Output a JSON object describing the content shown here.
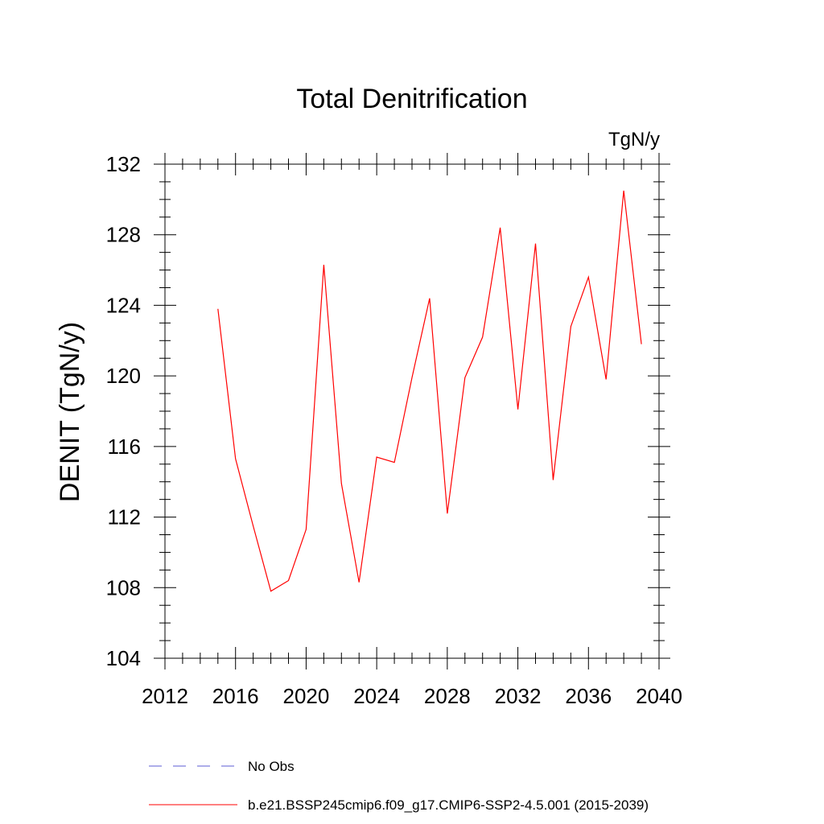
{
  "chart_data": {
    "type": "line",
    "title": "Total Denitrification",
    "units_label": "TgN/y",
    "ylabel": "DENIT  (TgN/y)",
    "xlabel": "",
    "xlim": [
      2012,
      2040
    ],
    "ylim": [
      104,
      132
    ],
    "x_ticks": [
      2012,
      2016,
      2020,
      2024,
      2028,
      2032,
      2036,
      2040
    ],
    "y_ticks": [
      104,
      108,
      112,
      116,
      120,
      124,
      128,
      132
    ],
    "x_tick_labels": [
      "2012",
      "2016",
      "2020",
      "2024",
      "2028",
      "2032",
      "2036",
      "2040"
    ],
    "y_tick_labels": [
      "104",
      "108",
      "112",
      "116",
      "120",
      "124",
      "128",
      "132"
    ],
    "grid": false,
    "legend_position": "bottom",
    "series": [
      {
        "name": "b.e21.BSSP245cmip6.f09_g17.CMIP6-SSP2-4.5.001 (2015-2039)",
        "color": "#ff0000",
        "dash": "solid",
        "x": [
          2015,
          2016,
          2017,
          2018,
          2019,
          2020,
          2021,
          2022,
          2023,
          2024,
          2025,
          2026,
          2027,
          2028,
          2029,
          2030,
          2031,
          2032,
          2033,
          2034,
          2035,
          2036,
          2037,
          2038,
          2039
        ],
        "values": [
          123.8,
          115.3,
          111.5,
          107.8,
          108.4,
          111.3,
          126.3,
          113.9,
          108.3,
          115.4,
          115.1,
          119.9,
          124.4,
          112.2,
          119.9,
          122.2,
          128.4,
          118.1,
          127.5,
          114.1,
          122.8,
          125.6,
          119.8,
          130.5,
          121.8
        ]
      }
    ],
    "legend": [
      {
        "label": "No Obs",
        "color": "#5b5bd6",
        "dash": "dashed"
      },
      {
        "label": "b.e21.BSSP245cmip6.f09_g17.CMIP6-SSP2-4.5.001 (2015-2039)",
        "color": "#ff0000",
        "dash": "solid"
      }
    ]
  }
}
